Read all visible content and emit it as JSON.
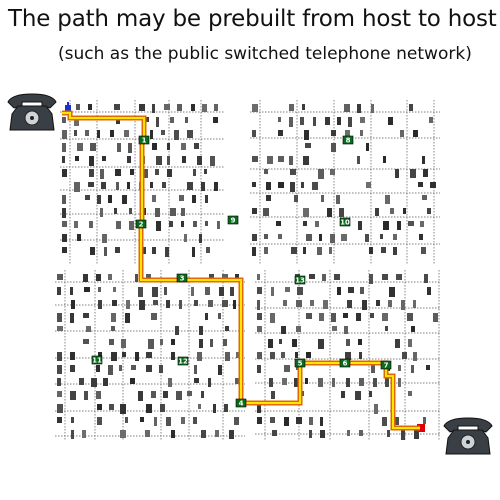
{
  "title": "The path may be prebuilt from host to host",
  "subtitle": "(such as the public switched telephone network)",
  "colors": {
    "background": "#ffffff",
    "switch_fill": "#0b6b1c",
    "path_outer": "#e06a00",
    "path_inner": "#ffe600",
    "wire": "#555555",
    "phone_body": "#3a3f45",
    "source_endpoint": "#1a2fd0",
    "dest_endpoint": "#e00000"
  },
  "diagram": {
    "source": {
      "name": "telephone-left",
      "icon": "telephone-icon"
    },
    "destination": {
      "name": "telephone-right",
      "icon": "telephone-icon"
    },
    "switches": [
      {
        "id": "s1",
        "label": "1",
        "on_path": true
      },
      {
        "id": "s2",
        "label": "2",
        "on_path": true
      },
      {
        "id": "s3",
        "label": "3",
        "on_path": true
      },
      {
        "id": "s4",
        "label": "4",
        "on_path": true
      },
      {
        "id": "s5",
        "label": "5",
        "on_path": true
      },
      {
        "id": "s6",
        "label": "6",
        "on_path": true
      },
      {
        "id": "s7",
        "label": "7",
        "on_path": true
      },
      {
        "id": "s8",
        "label": "8",
        "on_path": false
      },
      {
        "id": "s9",
        "label": "9",
        "on_path": false
      },
      {
        "id": "s10",
        "label": "10",
        "on_path": false
      },
      {
        "id": "s11",
        "label": "11",
        "on_path": false
      },
      {
        "id": "s12",
        "label": "12",
        "on_path": false
      },
      {
        "id": "s13",
        "label": "13",
        "on_path": false
      }
    ]
  }
}
